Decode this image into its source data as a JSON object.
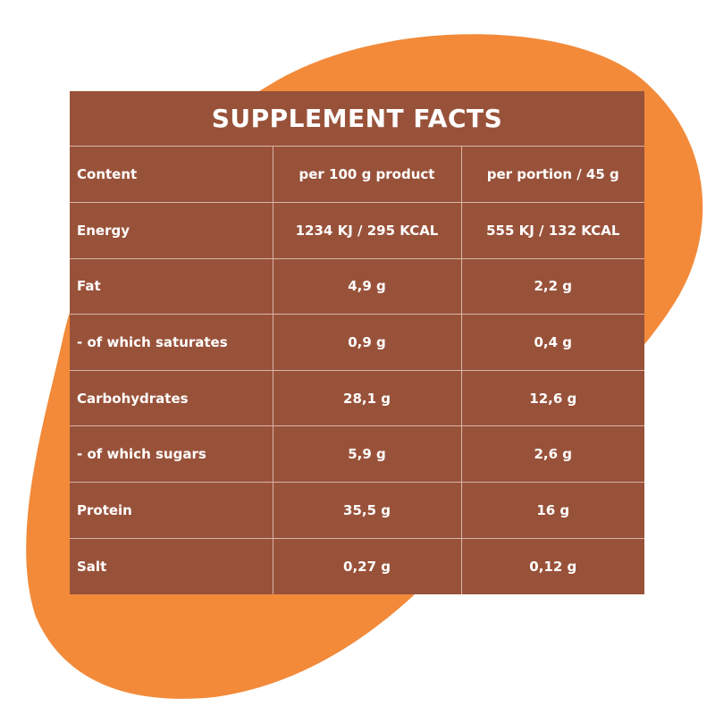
{
  "colors": {
    "blob": "#f28a3a",
    "panel": "#99523a",
    "rule": "#d9b4a6",
    "text": "#ffffff"
  },
  "title": "SUPPLEMENT FACTS",
  "header": {
    "label": "Content",
    "col1": "per 100 g product",
    "col2": "per portion / 45 g"
  },
  "rows": [
    {
      "label": "Energy",
      "per100": "1234 KJ / 295 KCAL",
      "portion": "555 KJ / 132 KCAL"
    },
    {
      "label": "Fat",
      "per100": "4,9 g",
      "portion": "2,2 g"
    },
    {
      "label": "- of which saturates",
      "per100": "0,9 g",
      "portion": "0,4 g"
    },
    {
      "label": "Carbohydrates",
      "per100": "28,1 g",
      "portion": "12,6 g"
    },
    {
      "label": "- of which sugars",
      "per100": "5,9 g",
      "portion": "2,6 g"
    },
    {
      "label": "Protein",
      "per100": "35,5 g",
      "portion": "16 g"
    },
    {
      "label": "Salt",
      "per100": "0,27 g",
      "portion": "0,12 g"
    }
  ]
}
